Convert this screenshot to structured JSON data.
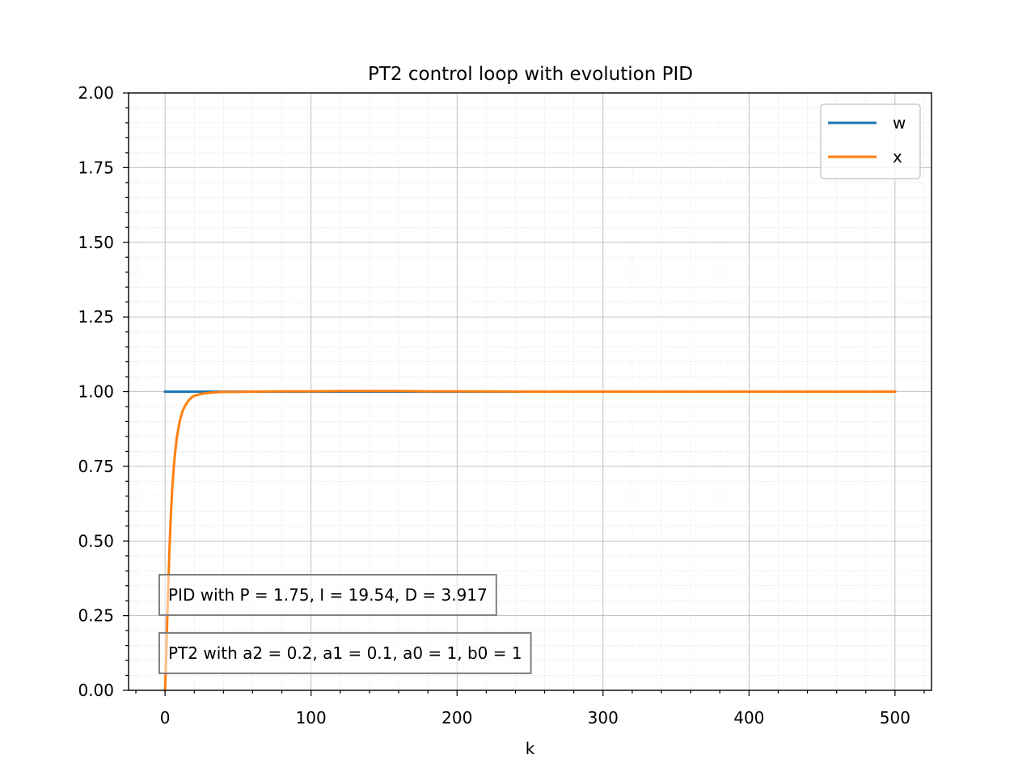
{
  "chart_data": {
    "type": "line",
    "title": "PT2 control loop with evolution PID",
    "xlabel": "k",
    "ylabel": "",
    "xlim": [
      -25,
      525
    ],
    "ylim": [
      0,
      2
    ],
    "x_ticks": [
      0,
      100,
      200,
      300,
      400,
      500
    ],
    "y_ticks": [
      0.0,
      0.25,
      0.5,
      0.75,
      1.0,
      1.25,
      1.5,
      1.75,
      2.0
    ],
    "x_tick_labels": [
      "0",
      "100",
      "200",
      "300",
      "400",
      "500"
    ],
    "y_tick_labels": [
      "0.00",
      "0.25",
      "0.50",
      "0.75",
      "1.00",
      "1.25",
      "1.50",
      "1.75",
      "2.00"
    ],
    "grid": true,
    "minor_grid": true,
    "legend_position": "top-right",
    "series": [
      {
        "name": "w",
        "color": "#1f77b4",
        "x": [
          0,
          500
        ],
        "y": [
          1.0,
          1.0
        ]
      },
      {
        "name": "x",
        "color": "#ff7f0e",
        "x": [
          0,
          1,
          2,
          3,
          4,
          5,
          6,
          7,
          8,
          10,
          12,
          14,
          16,
          18,
          20,
          25,
          30,
          35,
          40,
          50,
          60,
          80,
          100,
          120,
          140,
          160,
          180,
          200,
          250,
          300,
          350,
          400,
          450,
          500
        ],
        "y": [
          0.0,
          0.15,
          0.32,
          0.47,
          0.59,
          0.68,
          0.75,
          0.8,
          0.845,
          0.9,
          0.935,
          0.955,
          0.97,
          0.98,
          0.986,
          0.993,
          0.996,
          0.998,
          0.999,
          0.999,
          1.0,
          1.001,
          1.001,
          1.002,
          1.002,
          1.002,
          1.001,
          1.001,
          1.0,
          1.0,
          1.0,
          1.0,
          1.0,
          1.0
        ]
      }
    ],
    "annotations": [
      "PID with P = 1.75, I = 19.54, D = 3.917",
      "PT2 with a2 = 0.2, a1 = 0.1, a0 = 1, b0 = 1"
    ]
  }
}
